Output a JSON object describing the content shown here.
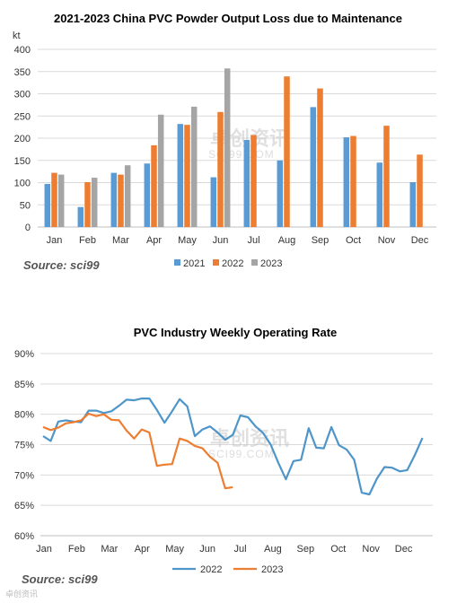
{
  "chart_data": [
    {
      "type": "bar",
      "title": "2021-2023 China PVC Powder Output Loss due to Maintenance",
      "ylabel": "kt",
      "ylim": [
        0,
        400
      ],
      "yticks": [
        0,
        50,
        100,
        150,
        200,
        250,
        300,
        350,
        400
      ],
      "categories": [
        "Jan",
        "Feb",
        "Mar",
        "Apr",
        "May",
        "Jun",
        "Jul",
        "Aug",
        "Sep",
        "Oct",
        "Nov",
        "Dec"
      ],
      "series": [
        {
          "name": "2021",
          "color": "#5b9bd5",
          "values": [
            97,
            45,
            122,
            143,
            232,
            112,
            196,
            150,
            270,
            202,
            145,
            101
          ]
        },
        {
          "name": "2022",
          "color": "#ed7d31",
          "values": [
            122,
            101,
            118,
            184,
            230,
            259,
            207,
            339,
            312,
            205,
            228,
            163
          ]
        },
        {
          "name": "2023",
          "color": "#a5a5a5",
          "values": [
            118,
            111,
            139,
            253,
            271,
            357,
            null,
            null,
            null,
            null,
            null,
            null
          ]
        }
      ],
      "legend_position": "bottom",
      "grid": true,
      "source": "Source: sci99"
    },
    {
      "type": "line",
      "title": "PVC Industry Weekly Operating Rate",
      "ylim": [
        60,
        90
      ],
      "yticks": [
        "60%",
        "65%",
        "70%",
        "75%",
        "80%",
        "85%",
        "90%"
      ],
      "ytick_values": [
        60,
        65,
        70,
        75,
        80,
        85,
        90
      ],
      "xticks": [
        "Jan",
        "Feb",
        "Mar",
        "Apr",
        "May",
        "Jun",
        "Jul",
        "Aug",
        "Sep",
        "Oct",
        "Nov",
        "Dec"
      ],
      "x_unit": "week",
      "series": [
        {
          "name": "2022",
          "color": "#4e95c9",
          "values": [
            76.4,
            75.6,
            78.8,
            79.0,
            78.8,
            78.7,
            80.6,
            80.6,
            80.2,
            80.5,
            81.4,
            82.4,
            82.3,
            82.6,
            82.6,
            80.7,
            78.6,
            80.5,
            82.5,
            81.3,
            76.4,
            77.5,
            78.0,
            77.0,
            75.8,
            76.6,
            79.8,
            79.5,
            78.0,
            76.9,
            75.0,
            72.0,
            69.3,
            72.3,
            72.5,
            77.7,
            74.5,
            74.4,
            77.9,
            74.9,
            74.2,
            72.5,
            67.1,
            66.8,
            69.4,
            71.3,
            71.2,
            70.6,
            70.8,
            73.3,
            76.1
          ]
        },
        {
          "name": "2023",
          "color": "#ed7d31",
          "values": [
            77.9,
            77.4,
            77.8,
            78.5,
            78.7,
            79.0,
            80.1,
            79.7,
            80.0,
            79.1,
            79.0,
            77.3,
            76.0,
            77.5,
            77.0,
            71.5,
            71.7,
            71.8,
            76.0,
            75.6,
            74.8,
            74.4,
            73.0,
            72.0,
            67.8,
            68.0
          ]
        }
      ],
      "legend_position": "bottom",
      "grid": true,
      "source": "Source: sci99"
    }
  ],
  "watermark": {
    "text": "卓创资讯",
    "sub": "SCI99.COM"
  },
  "corner_mark": "卓创资讯"
}
